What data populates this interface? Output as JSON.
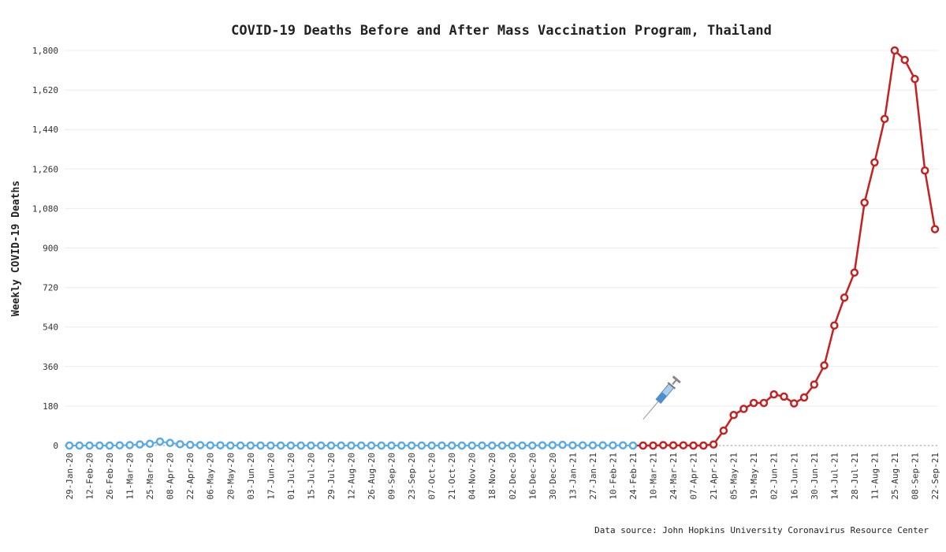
{
  "chart_data": {
    "type": "line",
    "title": "COVID-19 Deaths Before and After Mass Vaccination Program, Thailand",
    "ylabel": "Weekly COVID-19 Deaths",
    "xlabel": "",
    "source": "Data source: John Hopkins University Coronavirus Resource Center",
    "ylim": [
      0,
      1800
    ],
    "y_ticks": [
      "0",
      "180",
      "360",
      "540",
      "720",
      "900",
      "1,080",
      "1,260",
      "1,440",
      "1,620",
      "1,800"
    ],
    "y_tick_values": [
      0,
      180,
      360,
      540,
      720,
      900,
      1080,
      1260,
      1440,
      1620,
      1800
    ],
    "grid": true,
    "x_start": "29-Jan-20",
    "x_step_days": 7,
    "x_tick_every": 2,
    "x_tick_labels": [
      "29-Jan-20",
      "12-Feb-20",
      "26-Feb-20",
      "11-Mar-20",
      "25-Mar-20",
      "08-Apr-20",
      "22-Apr-20",
      "06-May-20",
      "20-May-20",
      "03-Jun-20",
      "17-Jun-20",
      "01-Jul-20",
      "15-Jul-20",
      "29-Jul-20",
      "12-Aug-20",
      "26-Aug-20",
      "09-Sep-20",
      "23-Sep-20",
      "07-Oct-20",
      "21-Oct-20",
      "04-Nov-20",
      "18-Nov-20",
      "02-Dec-20",
      "16-Dec-20",
      "30-Dec-20",
      "13-Jan-21",
      "27-Jan-21",
      "10-Feb-21",
      "24-Feb-21",
      "10-Mar-21",
      "24-Mar-21",
      "07-Apr-21",
      "21-Apr-21",
      "05-May-21",
      "19-May-21",
      "02-Jun-21",
      "16-Jun-21",
      "30-Jun-21",
      "14-Jul-21",
      "28-Jul-21",
      "11-Aug-21",
      "25-Aug-21",
      "08-Sep-21",
      "22-Sep-21"
    ],
    "series": [
      {
        "name": "Before mass vaccination",
        "color": "#5aaae6",
        "start_index": 0,
        "values": [
          0,
          0,
          0,
          0,
          0,
          1,
          2,
          5,
          8,
          18,
          12,
          6,
          3,
          2,
          1,
          1,
          0,
          0,
          0,
          0,
          0,
          0,
          0,
          0,
          0,
          0,
          0,
          0,
          0,
          0,
          0,
          0,
          0,
          0,
          0,
          0,
          0,
          0,
          0,
          0,
          0,
          0,
          0,
          0,
          0,
          0,
          0,
          1,
          2,
          3,
          1,
          1,
          1,
          1,
          1,
          1,
          0
        ]
      },
      {
        "name": "After mass vaccination",
        "color": "#c62020",
        "start_index": 57,
        "values": [
          0,
          0,
          2,
          1,
          1,
          0,
          0,
          5,
          68,
          139,
          167,
          194,
          194,
          233,
          223,
          192,
          219,
          278,
          365,
          547,
          674,
          788,
          1107,
          1290,
          1488,
          1800,
          1757,
          1670,
          1253,
          986
        ]
      }
    ],
    "annotation": "syringe-icon"
  }
}
